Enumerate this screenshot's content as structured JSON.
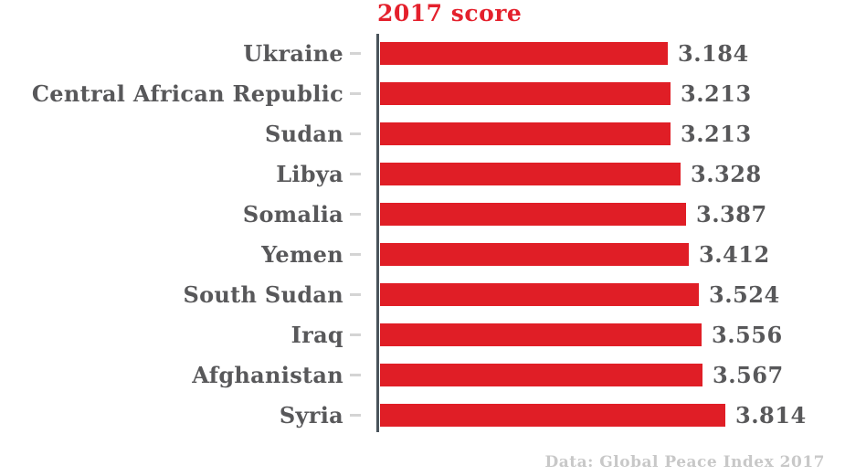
{
  "title": {
    "text": "2017 score",
    "color": "#e4202c"
  },
  "footer": {
    "text": "Data: Global Peace Index 2017",
    "color": "#c8c8c8"
  },
  "colors": {
    "bar": "#e01e26",
    "label": "#58585a",
    "value": "#58585a",
    "axis": "#4a545b",
    "tick": "#d4d4d4",
    "background": "#ffffff"
  },
  "chart_data": {
    "type": "bar",
    "orientation": "horizontal",
    "title": "2017 score",
    "categories": [
      "Ukraine",
      "Central African Republic",
      "Sudan",
      "Libya",
      "Somalia",
      "Yemen",
      "South Sudan",
      "Iraq",
      "Afghanistan",
      "Syria"
    ],
    "values": [
      3.184,
      3.213,
      3.213,
      3.328,
      3.387,
      3.412,
      3.524,
      3.556,
      3.567,
      3.814
    ],
    "value_labels": [
      "3.184",
      "3.213",
      "3.213",
      "3.328",
      "3.387",
      "3.412",
      "3.524",
      "3.556",
      "3.567",
      "3.814"
    ],
    "xlabel": "",
    "ylabel": "",
    "xlim": [
      0,
      4.0
    ],
    "grid": false,
    "legend": false,
    "bar_color": "#e01e26",
    "source_note": "Data: Global Peace Index 2017"
  }
}
